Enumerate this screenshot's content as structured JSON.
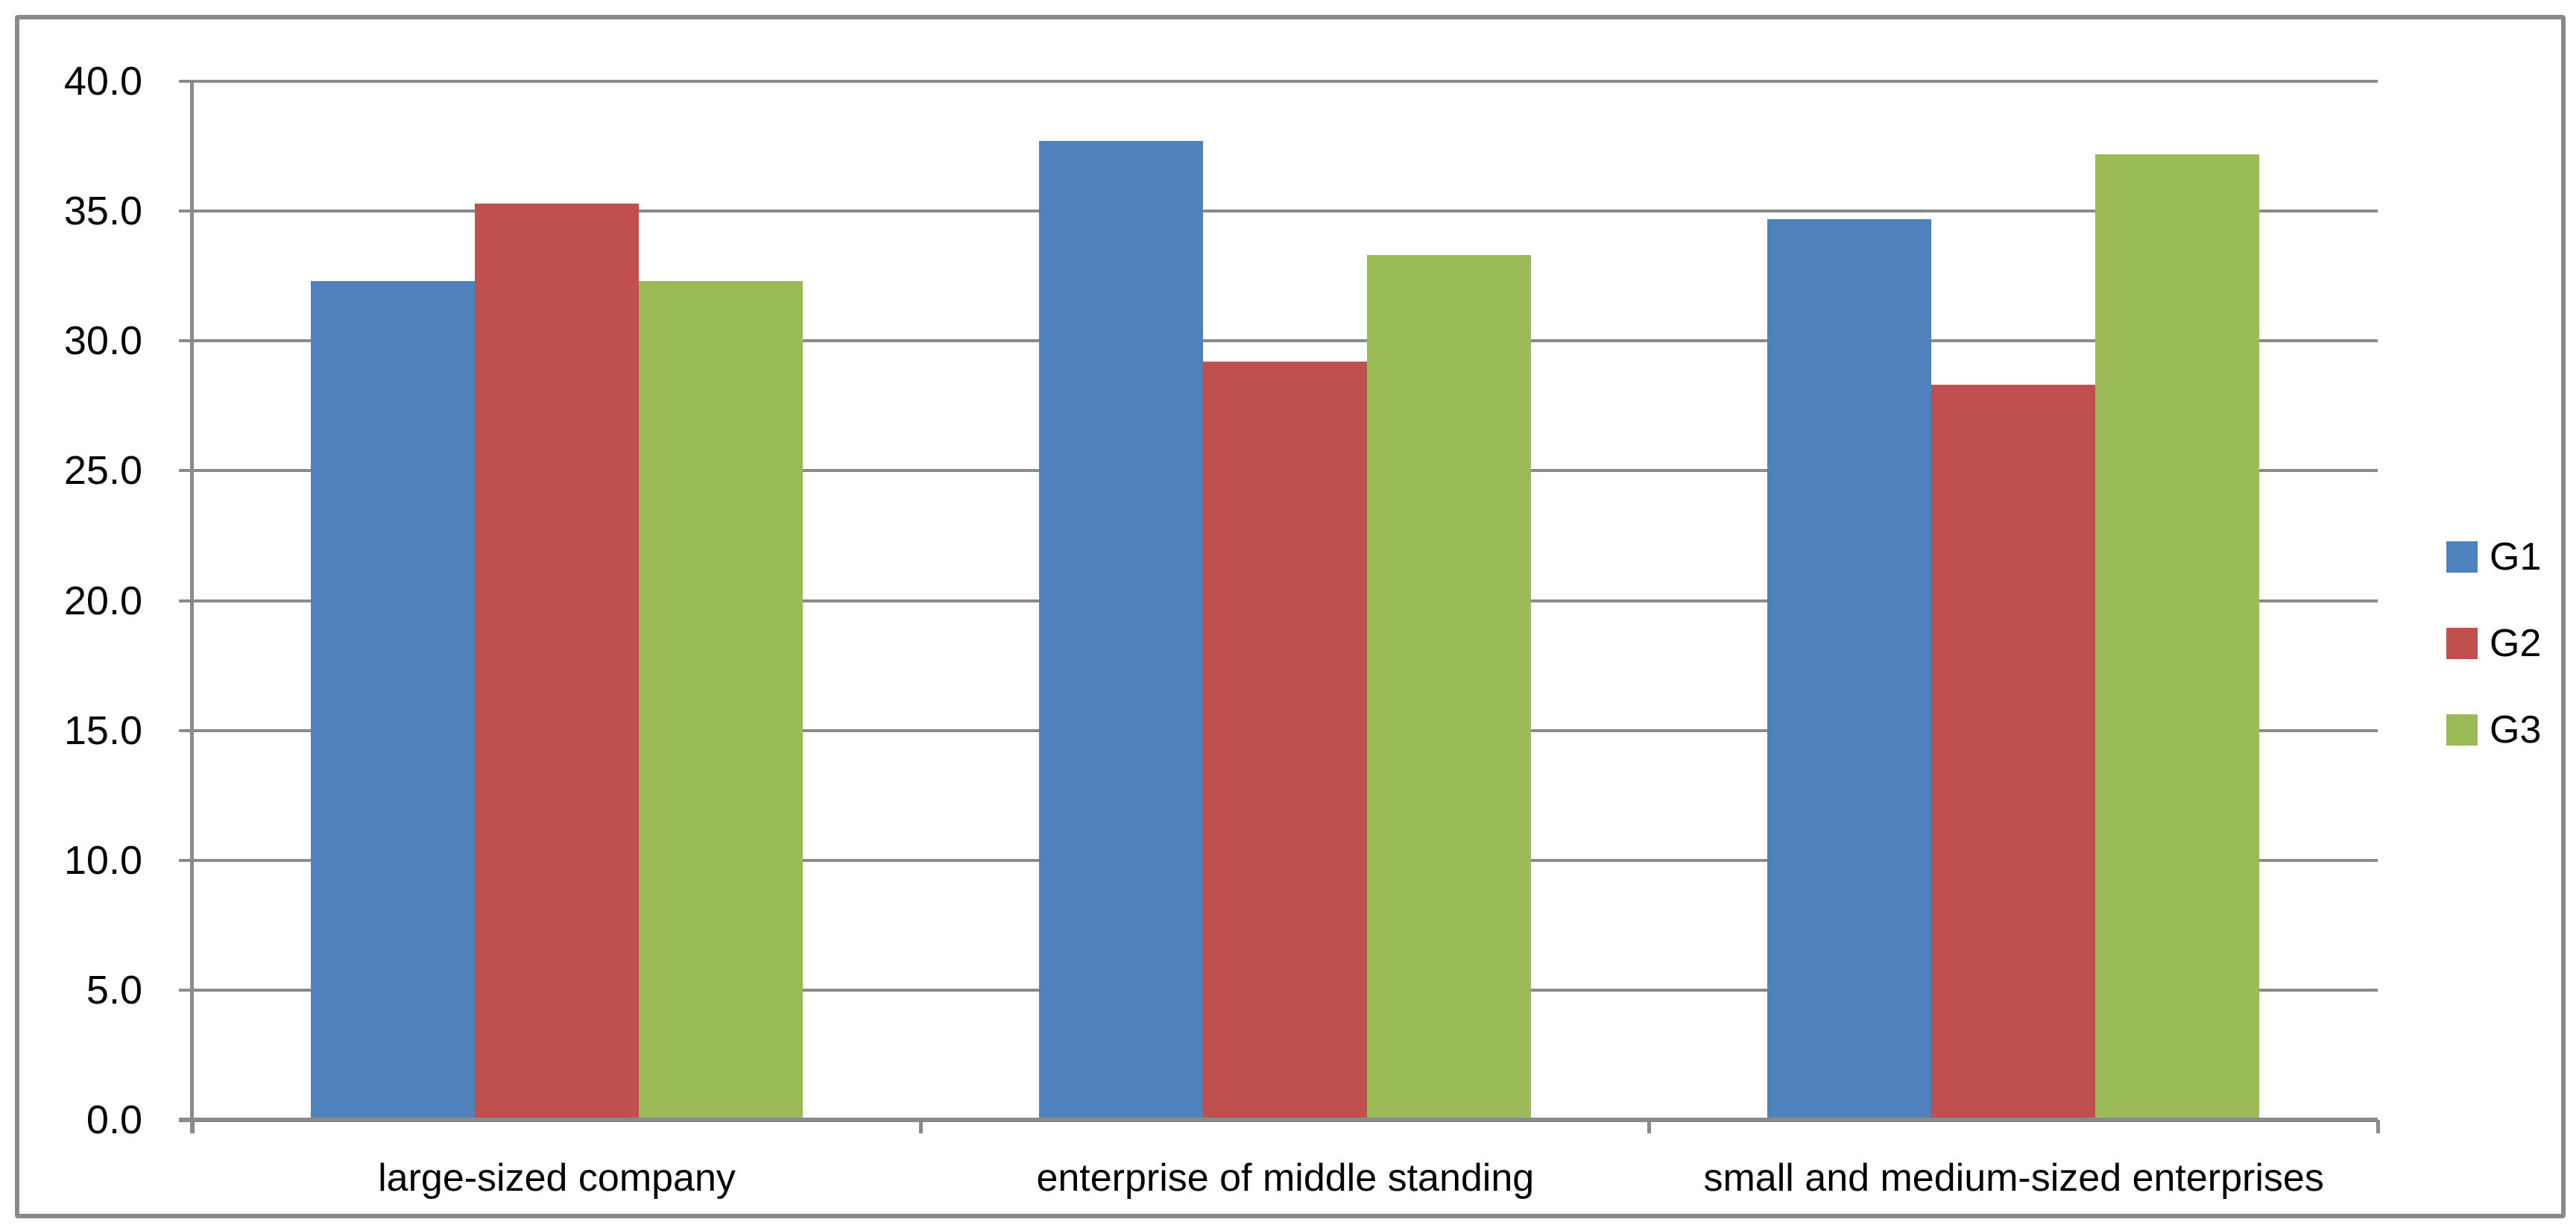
{
  "chart_data": {
    "type": "bar",
    "title": "",
    "categories": [
      "large-sized company",
      "enterprise of middle standing",
      "small and medium-sized enterprises"
    ],
    "series": [
      {
        "name": "G1",
        "color": "#4F81BD",
        "values": [
          32.3,
          37.7,
          34.7
        ]
      },
      {
        "name": "G2",
        "color": "#C0504D",
        "values": [
          35.3,
          29.2,
          28.3
        ]
      },
      {
        "name": "G3",
        "color": "#9BBB59",
        "values": [
          32.3,
          33.3,
          37.2
        ]
      }
    ],
    "ylim": [
      0,
      40
    ],
    "ytick_step": 5,
    "ytick_labels": [
      "0.0",
      "5.0",
      "10.0",
      "15.0",
      "20.0",
      "25.0",
      "30.0",
      "35.0",
      "40.0"
    ],
    "grid": true,
    "legend_position": "right",
    "legend_entries": [
      "G1",
      "G2",
      "G3"
    ]
  },
  "colors": {
    "series_g1": "#4F81BD",
    "series_g2": "#C0504D",
    "series_g3": "#9BBB59",
    "gridline": "#8A8A8A",
    "axis": "#8A8A8A",
    "frame_border": "#898989",
    "background": "#FFFFFF",
    "text": "#000000"
  }
}
